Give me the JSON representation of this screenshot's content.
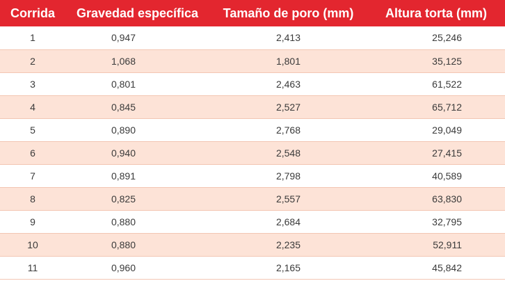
{
  "table": {
    "headers": [
      "Corrida",
      "Gravedad específica",
      "Tamaño de poro (mm)",
      "Altura torta (mm)"
    ],
    "rows": [
      [
        "1",
        "0,947",
        "2,413",
        "25,246"
      ],
      [
        "2",
        "1,068",
        "1,801",
        "35,125"
      ],
      [
        "3",
        "0,801",
        "2,463",
        "61,522"
      ],
      [
        "4",
        "0,845",
        "2,527",
        "65,712"
      ],
      [
        "5",
        "0,890",
        "2,768",
        "29,049"
      ],
      [
        "6",
        "0,940",
        "2,548",
        "27,415"
      ],
      [
        "7",
        "0,891",
        "2,798",
        "40,589"
      ],
      [
        "8",
        "0,825",
        "2,557",
        "63,830"
      ],
      [
        "9",
        "0,880",
        "2,684",
        "32,795"
      ],
      [
        "10",
        "0,880",
        "2,235",
        "52,911"
      ],
      [
        "11",
        "0,960",
        "2,165",
        "45,842"
      ]
    ]
  },
  "colors": {
    "header_background": "#e3262f",
    "header_text": "#ffffff",
    "row_even_background": "#ffffff",
    "row_odd_background": "#fde3d7",
    "cell_text": "#3a3a3a"
  }
}
